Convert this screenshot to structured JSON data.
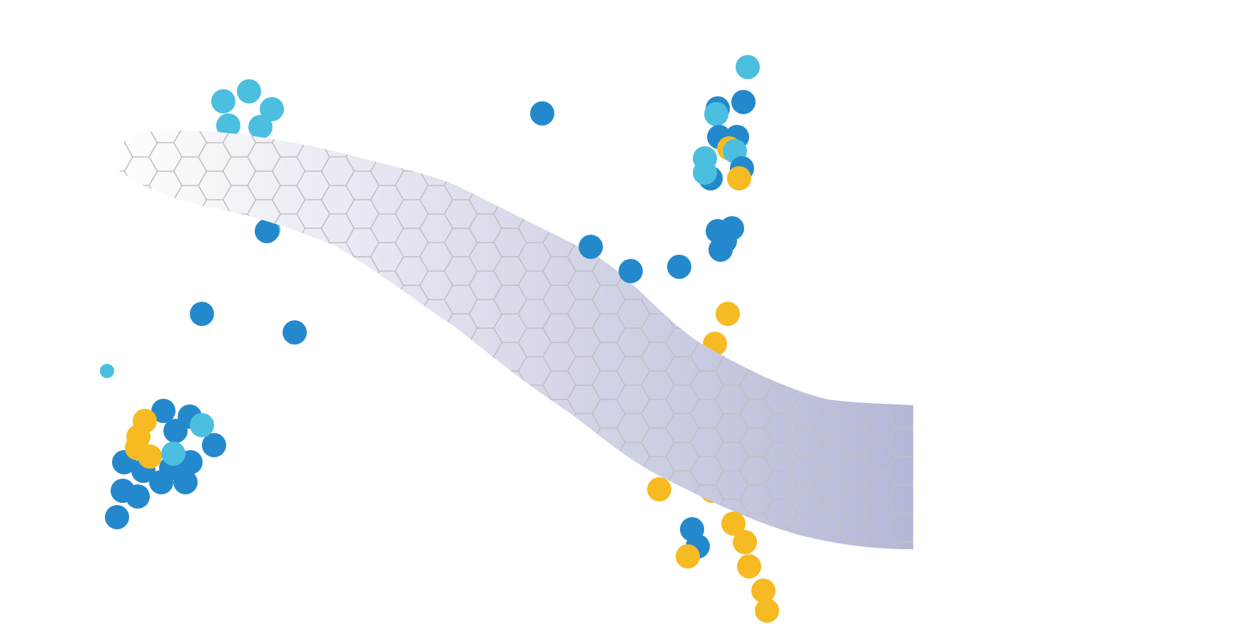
{
  "colors": {
    "background": "#ffffff",
    "dark_blue": "#2489cc",
    "light_blue": "#4cbfe0",
    "yellow": "#f6bb23",
    "membrane_start": "#ffffff",
    "membrane_end": "#b4b7d6",
    "hex_line": "#bfbfc4"
  },
  "membrane": {
    "pattern": "hexagonal-lattice"
  },
  "particles": {
    "groups": [
      {
        "name": "cluster-top-left",
        "colors": [
          "light_blue"
        ]
      },
      {
        "name": "cluster-bottom-left",
        "colors": [
          "dark_blue",
          "yellow",
          "light_blue"
        ]
      },
      {
        "name": "cluster-top-right",
        "colors": [
          "dark_blue",
          "light_blue",
          "yellow"
        ]
      },
      {
        "name": "scattered-middle",
        "colors": [
          "dark_blue",
          "yellow"
        ]
      },
      {
        "name": "cluster-bottom-right",
        "colors": [
          "yellow",
          "dark_blue"
        ]
      }
    ]
  }
}
